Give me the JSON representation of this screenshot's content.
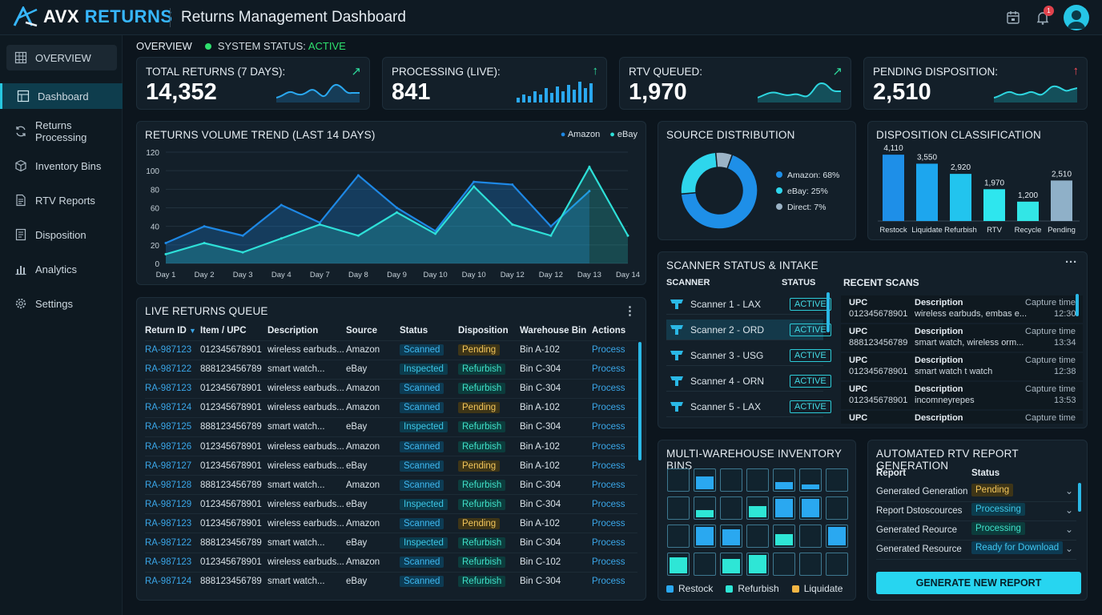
{
  "app": {
    "brand_part1": "AVX",
    "brand_part2": "RETURNS",
    "title": "Returns Management Dashboard",
    "notification_count": "1"
  },
  "sidebar": {
    "items": [
      {
        "label": "OVERVIEW",
        "icon": "grid-icon"
      },
      {
        "label": "Dashboard",
        "icon": "dashboard-icon"
      },
      {
        "label": "Returns Processing",
        "icon": "refresh-icon"
      },
      {
        "label": "Inventory Bins",
        "icon": "box-icon"
      },
      {
        "label": "RTV Reports",
        "icon": "document-icon"
      },
      {
        "label": "Disposition",
        "icon": "list-doc-icon"
      },
      {
        "label": "Analytics",
        "icon": "bar-chart-icon"
      },
      {
        "label": "Settings",
        "icon": "gear-icon"
      }
    ]
  },
  "overview": {
    "label": "OVERVIEW",
    "status_label": "SYSTEM STATUS:",
    "status_value": "ACTIVE"
  },
  "kpis": [
    {
      "label": "TOTAL RETURNS (7 DAYS):",
      "value": "14,352",
      "arrow": "↗",
      "arrow_color": "#2ee0a0"
    },
    {
      "label": "PROCESSING (LIVE):",
      "value": "841",
      "arrow": "↑",
      "arrow_color": "#2ee0a0"
    },
    {
      "label": "RTV QUEUED:",
      "value": "1,970",
      "arrow": "↗",
      "arrow_color": "#2ee0a0"
    },
    {
      "label": "PENDING DISPOSITION:",
      "value": "2,510",
      "arrow": "↑",
      "arrow_color": "#ff4d5a"
    }
  ],
  "trend": {
    "title": "RETURNS VOLUME TREND (LAST 14 DAYS)"
  },
  "chart_data": [
    {
      "type": "line",
      "title": "RETURNS VOLUME TREND (LAST 14 DAYS)",
      "categories": [
        "Day 1",
        "Day 2",
        "Day 3",
        "Day 4",
        "Day 7",
        "Day 8",
        "Day 9",
        "Day 10",
        "Day 10",
        "Day 12",
        "Day 12",
        "Day 13",
        "Day 14"
      ],
      "series": [
        {
          "name": "Amazon",
          "color": "#1e88e5",
          "values": [
            22,
            40,
            30,
            63,
            44,
            95,
            60,
            35,
            88,
            85,
            40,
            78,
            null
          ]
        },
        {
          "name": "eBay",
          "color": "#2ee0d8",
          "values": [
            10,
            22,
            12,
            27,
            42,
            30,
            55,
            32,
            83,
            42,
            30,
            104,
            30
          ]
        }
      ],
      "ylim": [
        0,
        120
      ],
      "yticks": [
        0,
        20,
        40,
        60,
        80,
        100,
        120
      ],
      "legend": "top-right",
      "grid": true
    },
    {
      "type": "pie",
      "title": "SOURCE DISTRIBUTION",
      "slices": [
        {
          "label": "Amazon: 68%",
          "value": 68,
          "color": "#1e8fe8"
        },
        {
          "label": "eBay: 25%",
          "value": 25,
          "color": "#2ed6ec"
        },
        {
          "label": "Direct: 7%",
          "value": 7,
          "color": "#9bb3c6"
        }
      ],
      "legend": "right"
    },
    {
      "type": "bar",
      "title": "DISPOSITION CLASSIFICATION",
      "categories": [
        "Restock",
        "Liquidate",
        "Refurbish",
        "RTV",
        "Recycle",
        "Pending"
      ],
      "values": [
        4110,
        3550,
        2920,
        1970,
        1200,
        2510
      ],
      "labels": [
        "4,110",
        "3,550",
        "2,920",
        "1,970",
        "1,200",
        "2,510"
      ],
      "colors": [
        "#1e8fe8",
        "#1da6ee",
        "#22c4ee",
        "#2ee6ee",
        "#32e6e6",
        "#8fb0c8"
      ],
      "ylim": [
        0,
        4500
      ]
    }
  ],
  "queue": {
    "title": "LIVE RETURNS QUEUE",
    "headers": [
      "Return ID",
      "Item / UPC",
      "Description",
      "Source",
      "Status",
      "Disposition",
      "Warehouse Bin",
      "Actions"
    ],
    "rows": [
      [
        "RA-987123",
        "012345678901",
        "wireless earbuds...",
        "Amazon",
        "Scanned",
        "Pending",
        "Bin A-102",
        "Process"
      ],
      [
        "RA-987122",
        "888123456789",
        "smart watch...",
        "eBay",
        "Inspected",
        "Refurbish",
        "Bin C-304",
        "Process"
      ],
      [
        "RA-987123",
        "012345678901",
        "wireless earbuds...",
        "Amazon",
        "Scanned",
        "Refurbish",
        "Bin C-304",
        "Process"
      ],
      [
        "RA-987124",
        "012345678901",
        "wireless earbuds...",
        "Amazon",
        "Scanned",
        "Pending",
        "Bin A-102",
        "Process"
      ],
      [
        "RA-987125",
        "888123456789",
        "smart watch...",
        "eBay",
        "Inspected",
        "Refurbish",
        "Bin C-304",
        "Process"
      ],
      [
        "RA-987126",
        "012345678901",
        "wireless earbuds...",
        "Amazon",
        "Scanned",
        "Refurbish",
        "Bin A-102",
        "Process"
      ],
      [
        "RA-987127",
        "012345678901",
        "wireless earbuds...",
        "eBay",
        "Scanned",
        "Pending",
        "Bin A-102",
        "Process"
      ],
      [
        "RA-987128",
        "888123456789",
        "smart watch...",
        "Amazon",
        "Scanned",
        "Refurbish",
        "Bin C-304",
        "Process"
      ],
      [
        "RA-987129",
        "012345678901",
        "wireless earbuds...",
        "eBay",
        "Inspected",
        "Refurbish",
        "Bin C-304",
        "Process"
      ],
      [
        "RA-987123",
        "012345678901",
        "wireless earbuds...",
        "Amazon",
        "Scanned",
        "Pending",
        "Bin A-102",
        "Process"
      ],
      [
        "RA-987122",
        "888123456789",
        "smart watch...",
        "eBay",
        "Inspected",
        "Refurbish",
        "Bin C-304",
        "Process"
      ],
      [
        "RA-987123",
        "012345678901",
        "wireless earbuds...",
        "Amazon",
        "Scanned",
        "Refurbish",
        "Bin C-102",
        "Process"
      ],
      [
        "RA-987124",
        "888123456789",
        "smart watch...",
        "eBay",
        "Scanned",
        "Refurbish",
        "Bin C-304",
        "Process"
      ]
    ]
  },
  "scanner": {
    "title": "SCANNER STATUS & INTAKE",
    "col_scanner": "SCANNER",
    "col_status": "STATUS",
    "recent_title": "RECENT SCANS",
    "scanners": [
      {
        "name": "Scanner 1 - LAX",
        "status": "ACTIVE"
      },
      {
        "name": "Scanner 2 - ORD",
        "status": "ACTIVE"
      },
      {
        "name": "Scanner 3 - USG",
        "status": "ACTIVE"
      },
      {
        "name": "Scanner 4 - ORN",
        "status": "ACTIVE"
      },
      {
        "name": "Scanner 5 - LAX",
        "status": "ACTIVE"
      }
    ],
    "recent": [
      {
        "upc_label": "UPC",
        "upc": "012345678901",
        "desc_label": "Description",
        "desc": "wireless earbuds, embas e...",
        "time_label": "Capture time",
        "time": "12:30"
      },
      {
        "upc_label": "UPC",
        "upc": "888123456789",
        "desc_label": "Description",
        "desc": "smart watch, wireless orm...",
        "time_label": "Capture time",
        "time": "13:34"
      },
      {
        "upc_label": "UPC",
        "upc": "012345678901",
        "desc_label": "Description",
        "desc": "smart watch t watch",
        "time_label": "Capture time",
        "time": "12:38"
      },
      {
        "upc_label": "UPC",
        "upc": "012345678901",
        "desc_label": "Description",
        "desc": "incomneyrepes",
        "time_label": "Capture time",
        "time": "13:53"
      },
      {
        "upc_label": "UPC",
        "upc": "",
        "desc_label": "Description",
        "desc": "",
        "time_label": "Capture time",
        "time": ""
      }
    ]
  },
  "bins": {
    "title": "MULTI-WAREHOUSE INVENTORY BINS",
    "legend": [
      {
        "label": "Restock",
        "color": "#2aa8f0"
      },
      {
        "label": "Refurbish",
        "color": "#2ee6d6"
      },
      {
        "label": "Liquidate",
        "color": "#f2b544"
      }
    ],
    "grid": [
      [
        {
          "t": "e",
          "l": 0
        },
        {
          "t": "r",
          "l": 0.65
        },
        {
          "t": "e",
          "l": 0
        },
        {
          "t": "e",
          "l": 0
        },
        {
          "t": "r",
          "l": 0.35
        },
        {
          "t": "r",
          "l": 0.25
        },
        {
          "t": "e",
          "l": 0
        }
      ],
      [
        {
          "t": "e",
          "l": 0
        },
        {
          "t": "f",
          "l": 0.35
        },
        {
          "t": "e",
          "l": 0
        },
        {
          "t": "f",
          "l": 0.55
        },
        {
          "t": "r",
          "l": 0.9
        },
        {
          "t": "r",
          "l": 0.9
        },
        {
          "t": "e",
          "l": 0
        }
      ],
      [
        {
          "t": "e",
          "l": 0
        },
        {
          "t": "r",
          "l": 0.9
        },
        {
          "t": "r",
          "l": 0.8
        },
        {
          "t": "e",
          "l": 0
        },
        {
          "t": "f",
          "l": 0.55
        },
        {
          "t": "e",
          "l": 0
        },
        {
          "t": "r",
          "l": 0.9
        }
      ],
      [
        {
          "t": "f",
          "l": 0.8
        },
        {
          "t": "e",
          "l": 0
        },
        {
          "t": "f",
          "l": 0.7
        },
        {
          "t": "f",
          "l": 0.9
        },
        {
          "t": "e",
          "l": 0
        },
        {
          "t": "e",
          "l": 0
        },
        {
          "t": "e",
          "l": 0
        }
      ]
    ]
  },
  "rtv": {
    "title": "AUTOMATED RTV REPORT GENERATION",
    "col_report": "Report",
    "col_status": "Status",
    "rows": [
      {
        "name": "Generated Generation",
        "status": "Pending",
        "cls": "s-pending"
      },
      {
        "name": "Report Dstoscources",
        "status": "Processing",
        "cls": "s-processing"
      },
      {
        "name": "Generated Reource",
        "status": "Processing",
        "cls": "s-processing2"
      },
      {
        "name": "Generated Resource",
        "status": "Ready for Download",
        "cls": "s-ready"
      }
    ],
    "button": "GENERATE NEW REPORT"
  }
}
